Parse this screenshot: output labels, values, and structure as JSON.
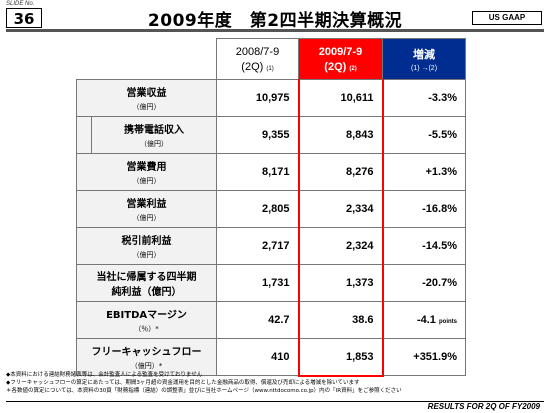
{
  "slide": {
    "label": "SLIDE No.",
    "number": "36"
  },
  "title": "2009年度　第2四半期決算概況",
  "gaap": "US GAAP",
  "header": {
    "prev_period": "2008/7-9",
    "prev_q": "(2Q)",
    "prev_ref": "(1)",
    "cur_period": "2009/7-9",
    "cur_q": "(2Q)",
    "cur_ref": "(2)",
    "change_label": "増減",
    "change_formula": "(1) →(2)"
  },
  "rows": [
    {
      "label": "営業収益",
      "unit": "（億円）",
      "prev": "10,975",
      "cur": "10,611",
      "change": "-3.3%"
    },
    {
      "label": "携帯電話収入",
      "unit": "（億円）",
      "prev": "9,355",
      "cur": "8,843",
      "change": "-5.5%"
    },
    {
      "label": "営業費用",
      "unit": "（億円）",
      "prev": "8,171",
      "cur": "8,276",
      "change": "+1.3%"
    },
    {
      "label": "営業利益",
      "unit": "（億円）",
      "prev": "2,805",
      "cur": "2,334",
      "change": "-16.8%"
    },
    {
      "label": "税引前利益",
      "unit": "（億円）",
      "prev": "2,717",
      "cur": "2,324",
      "change": "-14.5%"
    },
    {
      "label": "当社に帰属する四半期",
      "label2": "純利益（億円）",
      "prev": "1,731",
      "cur": "1,373",
      "change": "-20.7%"
    },
    {
      "label": "EBITDAマージン",
      "unit": "（％）*",
      "prev": "42.7",
      "cur": "38.6",
      "change": "-4.1",
      "change_unit": "points"
    },
    {
      "label": "フリーキャッシュフロー",
      "unit": "（億円）*",
      "prev": "410",
      "cur": "1,853",
      "change": "+351.9%"
    }
  ],
  "notes": [
    "◆本資料における連結財務諸表等は、会計監査人による監査を受けておりません",
    "◆フリーキャッシュフローの算定にあたっては、期間3ヶ月超の資金運用を目的とした金融商品の取得、償還及び売却による増減を除いています",
    "＊各数値の算定については、本資料の30頁「財務指標（連結）の調整表」並びに当社ホームページ（www.nttdocomo.co.jp）内の「IR資料」をご参照ください"
  ],
  "footer": "RESULTS FOR 2Q OF FY2009"
}
